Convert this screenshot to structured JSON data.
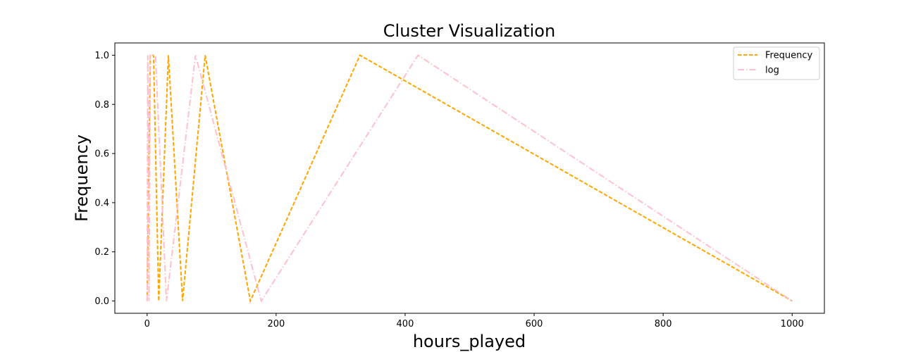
{
  "chart_data": {
    "type": "line",
    "title": "Cluster Visualization",
    "xlabel": "hours_played",
    "ylabel": "Frequency",
    "xlim": [
      -50,
      1050
    ],
    "ylim": [
      -0.05,
      1.05
    ],
    "x_ticks": [
      0,
      200,
      400,
      600,
      800,
      1000
    ],
    "y_ticks": [
      0.0,
      0.2,
      0.4,
      0.6,
      0.8,
      1.0
    ],
    "x_tick_labels": [
      "0",
      "200",
      "400",
      "600",
      "800",
      "1000"
    ],
    "y_tick_labels": [
      "0.0",
      "0.2",
      "0.4",
      "0.6",
      "0.8",
      "1.0"
    ],
    "grid": false,
    "legend_position": "top-right",
    "series": [
      {
        "name": "Frequency",
        "color": "#FFA500",
        "style": "dashed",
        "points": [
          [
            0,
            0
          ],
          [
            5,
            1
          ],
          [
            10,
            1
          ],
          [
            18,
            0
          ],
          [
            33,
            1
          ],
          [
            55,
            0
          ],
          [
            90,
            1
          ],
          [
            160,
            0
          ],
          [
            330,
            1
          ],
          [
            1000,
            0
          ]
        ]
      },
      {
        "name": "log",
        "color": "#FFC0CB",
        "style": "dashdot",
        "points": [
          [
            0,
            0
          ],
          [
            1,
            1
          ],
          [
            3,
            0
          ],
          [
            5,
            1
          ],
          [
            8,
            1
          ],
          [
            13,
            1
          ],
          [
            30,
            0
          ],
          [
            75,
            1
          ],
          [
            177,
            0
          ],
          [
            420,
            1
          ],
          [
            1000,
            0
          ]
        ]
      }
    ]
  }
}
